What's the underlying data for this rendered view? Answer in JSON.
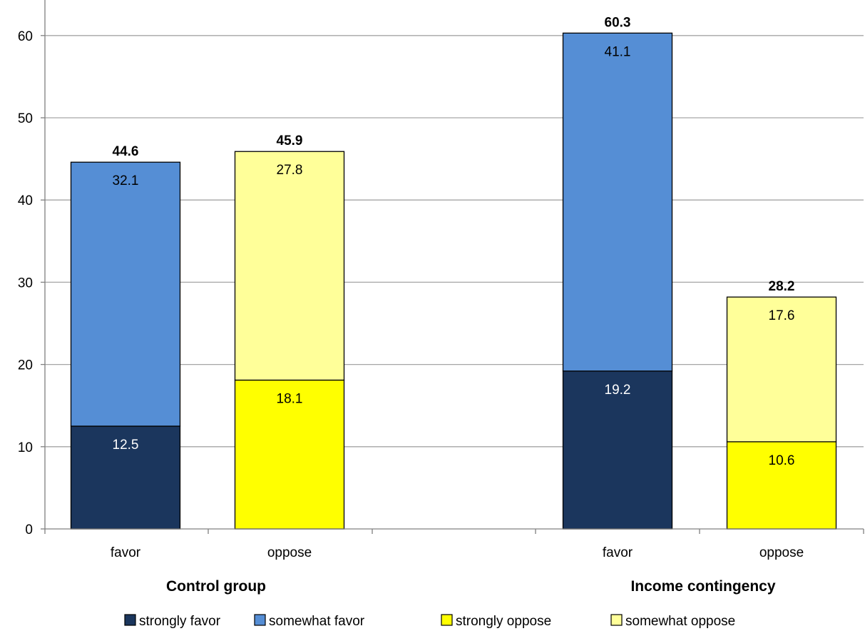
{
  "chart_data": {
    "type": "bar",
    "stacked": true,
    "groups": [
      {
        "label": "Control group",
        "categories": [
          "favor",
          "oppose"
        ]
      },
      {
        "label": "Income contingency",
        "categories": [
          "favor",
          "oppose"
        ]
      }
    ],
    "bars": [
      {
        "group": 0,
        "category": "favor",
        "total": 44.6,
        "total_label": "44.6",
        "segments": [
          {
            "series": "strongly favor",
            "value": 12.5,
            "label": "12.5"
          },
          {
            "series": "somewhat favor",
            "value": 32.1,
            "label": "32.1"
          }
        ]
      },
      {
        "group": 0,
        "category": "oppose",
        "total": 45.9,
        "total_label": "45.9",
        "segments": [
          {
            "series": "strongly oppose",
            "value": 18.1,
            "label": "18.1"
          },
          {
            "series": "somewhat oppose",
            "value": 27.8,
            "label": "27.8"
          }
        ]
      },
      {
        "group": 1,
        "category": "favor",
        "total": 60.3,
        "total_label": "60.3",
        "segments": [
          {
            "series": "strongly favor",
            "value": 19.2,
            "label": "19.2"
          },
          {
            "series": "somewhat favor",
            "value": 41.1,
            "label": "41.1"
          }
        ]
      },
      {
        "group": 1,
        "category": "oppose",
        "total": 28.2,
        "total_label": "28.2",
        "segments": [
          {
            "series": "strongly oppose",
            "value": 10.6,
            "label": "10.6"
          },
          {
            "series": "somewhat oppose",
            "value": 17.6,
            "label": "17.6"
          }
        ]
      }
    ],
    "series": [
      {
        "name": "strongly favor",
        "color": "#1b365d",
        "label_color": "#ffffff"
      },
      {
        "name": "somewhat favor",
        "color": "#558ed5",
        "label_color": "#000000"
      },
      {
        "name": "strongly oppose",
        "color": "#ffff00",
        "label_color": "#000000"
      },
      {
        "name": "somewhat oppose",
        "color": "#ffff99",
        "label_color": "#000000"
      }
    ],
    "yticks": [
      "0",
      "10",
      "20",
      "30",
      "40",
      "50",
      "60"
    ],
    "ylim": [
      0,
      60
    ],
    "grid": true,
    "legend_position": "bottom",
    "title": "",
    "xlabel": "",
    "ylabel": ""
  }
}
